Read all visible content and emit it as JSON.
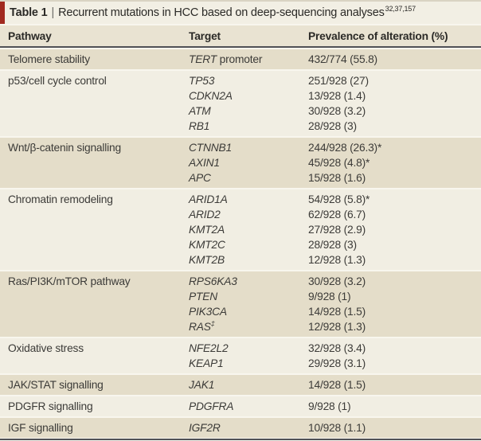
{
  "title": {
    "label": "Table 1",
    "separator": "|",
    "text": "Recurrent mutations in HCC based on deep-sequencing analyses",
    "refs": "32,37,157"
  },
  "columns": [
    "Pathway",
    "Target",
    "Prevalence of alteration (%)"
  ],
  "sections": [
    {
      "pathway": "Telomere stability",
      "rows": [
        {
          "gene": "TERT",
          "suffix": " promoter",
          "prevalence": "432/774 (55.8)"
        }
      ]
    },
    {
      "pathway": "p53/cell cycle control",
      "rows": [
        {
          "gene": "TP53",
          "prevalence": "251/928 (27)"
        },
        {
          "gene": "CDKN2A",
          "prevalence": "13/928 (1.4)"
        },
        {
          "gene": "ATM",
          "prevalence": "30/928 (3.2)"
        },
        {
          "gene": "RB1",
          "prevalence": "28/928 (3)"
        }
      ]
    },
    {
      "pathway": "Wnt/β-catenin signalling",
      "rows": [
        {
          "gene": "CTNNB1",
          "prevalence": "244/928 (26.3)*"
        },
        {
          "gene": "AXIN1",
          "prevalence": "45/928 (4.8)*"
        },
        {
          "gene": "APC",
          "prevalence": "15/928 (1.6)"
        }
      ]
    },
    {
      "pathway": "Chromatin remodeling",
      "rows": [
        {
          "gene": "ARID1A",
          "prevalence": "54/928 (5.8)*"
        },
        {
          "gene": "ARID2",
          "prevalence": "62/928 (6.7)"
        },
        {
          "gene": "KMT2A",
          "prevalence": "27/928 (2.9)"
        },
        {
          "gene": "KMT2C",
          "prevalence": "28/928 (3)"
        },
        {
          "gene": "KMT2B",
          "prevalence": "12/928 (1.3)"
        }
      ]
    },
    {
      "pathway": "Ras/PI3K/mTOR pathway",
      "rows": [
        {
          "gene": "RPS6KA3",
          "prevalence": "30/928 (3.2)"
        },
        {
          "gene": "PTEN",
          "prevalence": "9/928 (1)"
        },
        {
          "gene": "PIK3CA",
          "prevalence": "14/928 (1.5)"
        },
        {
          "gene": "RAS",
          "sup": "‡",
          "prevalence": "12/928 (1.3)"
        }
      ]
    },
    {
      "pathway": "Oxidative stress",
      "rows": [
        {
          "gene": "NFE2L2",
          "prevalence": "32/928 (3.4)"
        },
        {
          "gene": "KEAP1",
          "prevalence": "29/928 (3.1)"
        }
      ]
    },
    {
      "pathway": "JAK/STAT signalling",
      "rows": [
        {
          "gene": "JAK1",
          "prevalence": "14/928 (1.5)"
        }
      ]
    },
    {
      "pathway": "PDGFR signalling",
      "rows": [
        {
          "gene": "PDGFRA",
          "prevalence": "9/928 (1)"
        }
      ]
    },
    {
      "pathway": "IGF signalling",
      "rows": [
        {
          "gene": "IGF2R",
          "prevalence": "10/928 (1.1)"
        }
      ]
    }
  ],
  "colors": {
    "accent-red": "#a1291f",
    "page-bg": "#f8f6ee",
    "top-strip": "#d9d3c3",
    "title-bg": "#f2efe4",
    "header-bg": "#e9e3d2",
    "row-dark": "#e4ddc9",
    "row-light": "#f1eee3",
    "border-dark": "#505156",
    "text": "#3c3b38",
    "heading-text": "#2b2a27"
  }
}
